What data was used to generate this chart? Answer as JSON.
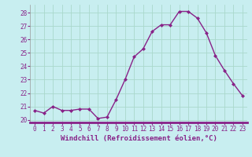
{
  "x": [
    0,
    1,
    2,
    3,
    4,
    5,
    6,
    7,
    8,
    9,
    10,
    11,
    12,
    13,
    14,
    15,
    16,
    17,
    18,
    19,
    20,
    21,
    22,
    23
  ],
  "y": [
    20.7,
    20.5,
    21.0,
    20.7,
    20.7,
    20.8,
    20.8,
    20.1,
    20.2,
    21.5,
    23.0,
    24.7,
    25.3,
    26.6,
    27.1,
    27.1,
    28.1,
    28.1,
    27.6,
    26.5,
    24.8,
    23.7,
    22.7,
    21.8
  ],
  "line_color": "#882288",
  "marker": "D",
  "marker_size": 2.0,
  "bg_color": "#c8eef0",
  "grid_color": "#aad8cc",
  "xlabel": "Windchill (Refroidissement éolien,°C)",
  "ylim": [
    19.8,
    28.6
  ],
  "yticks": [
    20,
    21,
    22,
    23,
    24,
    25,
    26,
    27,
    28
  ],
  "xticks": [
    0,
    1,
    2,
    3,
    4,
    5,
    6,
    7,
    8,
    9,
    10,
    11,
    12,
    13,
    14,
    15,
    16,
    17,
    18,
    19,
    20,
    21,
    22,
    23
  ],
  "tick_fontsize": 5.5,
  "xlabel_fontsize": 6.5,
  "line_width": 1.0,
  "spine_color": "#999999",
  "bottom_bar_color": "#882288"
}
